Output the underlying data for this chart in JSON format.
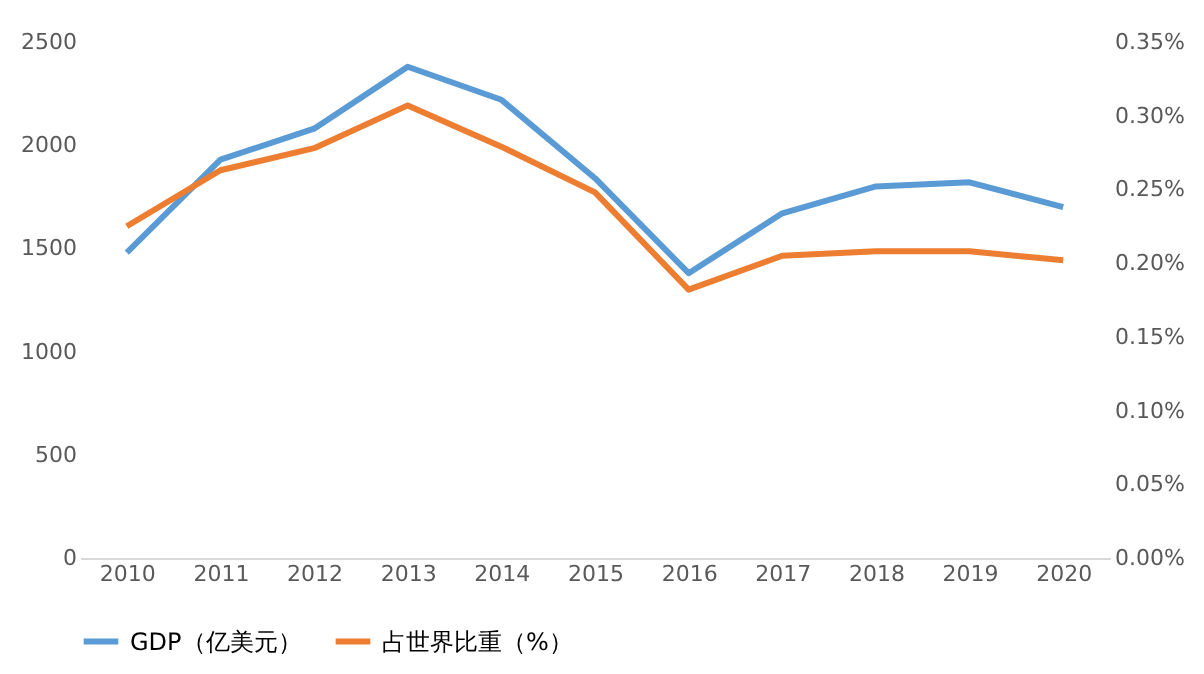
{
  "chart_data": {
    "type": "line",
    "categories": [
      "2010",
      "2011",
      "2012",
      "2013",
      "2014",
      "2015",
      "2016",
      "2017",
      "2018",
      "2019",
      "2020"
    ],
    "series": [
      {
        "name": "GDP（亿美元）",
        "color": "#5b9bd5",
        "values": [
          1480,
          1930,
          2080,
          2380,
          2220,
          1840,
          1380,
          1670,
          1800,
          1820,
          1700
        ]
      },
      {
        "name": "占世界比重（%）",
        "color": "#ed7d31",
        "axis": "y2",
        "values": [
          0.225,
          0.263,
          0.278,
          0.307,
          0.279,
          0.248,
          0.182,
          0.205,
          0.208,
          0.208,
          0.202
        ]
      }
    ],
    "ylim": [
      0,
      2500
    ],
    "yticks": [
      0,
      500,
      1000,
      1500,
      2000,
      2500
    ],
    "y2lim": [
      0,
      0.35
    ],
    "y2ticks": [
      {
        "value": 0,
        "label": "0.00%"
      },
      {
        "value": 0.05,
        "label": "0.05%"
      },
      {
        "value": 0.1,
        "label": "0.10%"
      },
      {
        "value": 0.15,
        "label": "0.15%"
      },
      {
        "value": 0.2,
        "label": "0.20%"
      },
      {
        "value": 0.25,
        "label": "0.25%"
      },
      {
        "value": 0.3,
        "label": "0.30%"
      },
      {
        "value": 0.35,
        "label": "0.35%"
      }
    ],
    "grid": false,
    "legend": "bottom",
    "marker": "none",
    "line_style": "solid"
  }
}
